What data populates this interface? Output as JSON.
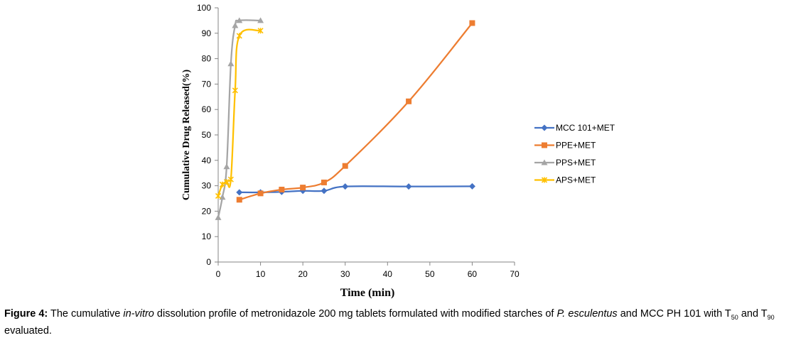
{
  "chart_data": {
    "type": "line",
    "title": "",
    "xlabel": "Time (min)",
    "ylabel": "Cumulative Drug Released(%)",
    "xlim": [
      0,
      70
    ],
    "ylim": [
      0,
      100
    ],
    "xticks": [
      0,
      10,
      20,
      30,
      40,
      50,
      60,
      70
    ],
    "yticks": [
      0,
      10,
      20,
      30,
      40,
      50,
      60,
      70,
      80,
      90,
      100
    ],
    "grid": false,
    "legend_position": "right",
    "series": [
      {
        "name": "MCC 101+MET",
        "color": "#4472C4",
        "marker": "diamond",
        "x": [
          5,
          10,
          15,
          20,
          25,
          30,
          45,
          60
        ],
        "y": [
          27.4,
          27.4,
          27.6,
          28.0,
          28.0,
          29.7,
          29.7,
          29.8
        ]
      },
      {
        "name": "PPE+MET",
        "color": "#ED7D31",
        "marker": "square",
        "x": [
          5,
          10,
          15,
          20,
          25,
          30,
          45,
          60
        ],
        "y": [
          24.5,
          27.0,
          28.5,
          29.3,
          31.3,
          37.8,
          63.2,
          94.0
        ]
      },
      {
        "name": "PPS+MET",
        "color": "#A5A5A5",
        "marker": "triangle",
        "x": [
          0,
          1,
          2,
          3,
          4,
          5,
          10
        ],
        "y": [
          17.5,
          25.5,
          37.5,
          78.0,
          93.0,
          95.0,
          95.0
        ]
      },
      {
        "name": "APS+MET",
        "color": "#FFC000",
        "marker": "x",
        "x": [
          0,
          1,
          2,
          3,
          4,
          5,
          10
        ],
        "y": [
          26.0,
          30.5,
          31.5,
          32.5,
          67.5,
          89.0,
          91.0
        ]
      }
    ]
  },
  "caption": {
    "label": "Figure 4:",
    "text1": " The cumulative ",
    "italic1": "in-vitro",
    "text2": " dissolution profile of metronidazole 200 mg tablets formulated with modified starches of ",
    "italic2": "P. esculentus",
    "text3": " and MCC PH 101 with T",
    "sub1": "50",
    "text4": " and T",
    "sub2": "90",
    "text5": " evaluated."
  }
}
